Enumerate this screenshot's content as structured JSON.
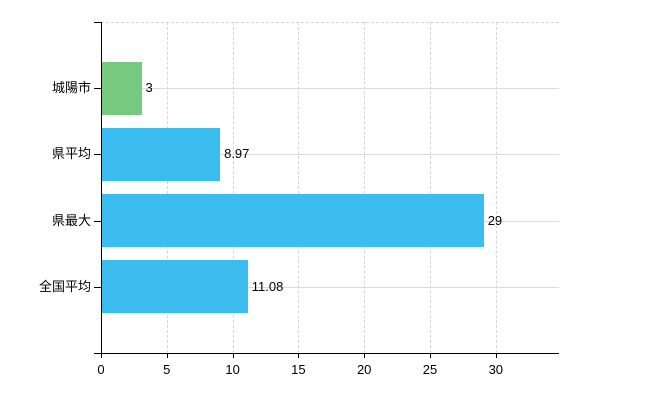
{
  "chart_data": {
    "type": "bar",
    "orientation": "horizontal",
    "title": "",
    "categories": [
      "城陽市",
      "県平均",
      "県最大",
      "全国平均"
    ],
    "values": [
      3,
      8.97,
      29,
      11.08
    ],
    "value_labels": [
      "3",
      "8.97",
      "29",
      "11.08"
    ],
    "bar_colors": [
      "#77C980",
      "#3BBDF0",
      "#3BBDF0",
      "#3BBDF0"
    ],
    "x_ticks": [
      0,
      5,
      10,
      15,
      20,
      25,
      30
    ],
    "x_tick_labels": [
      "0",
      "5",
      "10",
      "15",
      "20",
      "25",
      "30"
    ],
    "xlim": [
      0,
      34.8
    ],
    "grid": true,
    "legend_position": "none",
    "colors": {
      "grid_vertical": "#D5D5D5",
      "grid_horizontal": "#D8DDD8",
      "axis": "#000000",
      "text": "#000000",
      "background": "#FFFFFF"
    }
  }
}
